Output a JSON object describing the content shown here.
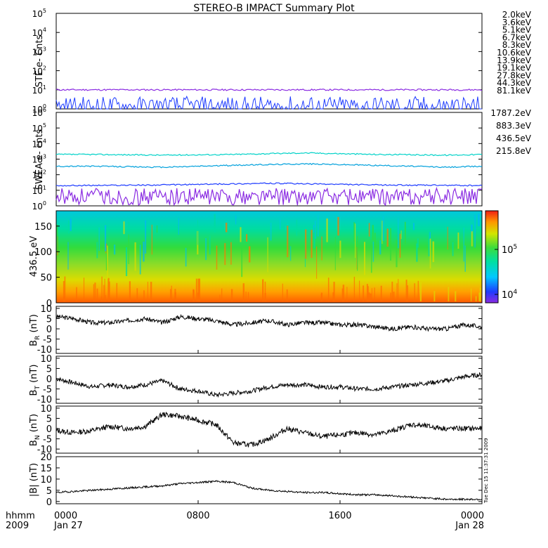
{
  "title": "STEREO-B IMPACT Summary Plot",
  "timestamp": "Tue Dec 15 11:37:31 2009",
  "time_axis": {
    "label_top": "hhmm",
    "label_bottom": "2009",
    "ticks": [
      {
        "hhmm": "0000",
        "date": "Jan 27",
        "hours": 0
      },
      {
        "hhmm": "0800",
        "date": "",
        "hours": 8
      },
      {
        "hhmm": "1600",
        "date": "",
        "hours": 16
      },
      {
        "hhmm": "0000",
        "date": "Jan 28",
        "hours": 24
      }
    ]
  },
  "ste_legend": [
    {
      "label": "2.0keV",
      "color": "#8a2be2"
    },
    {
      "label": "3.6keV",
      "color": "#3a3ad0"
    },
    {
      "label": "5.1keV",
      "color": "#1e64ff"
    },
    {
      "label": "6.7keV",
      "color": "#00a0dc"
    },
    {
      "label": "8.3keV",
      "color": "#00d2c8"
    },
    {
      "label": "10.6keV",
      "color": "#00d278"
    },
    {
      "label": "13.9keV",
      "color": "#3cc800"
    },
    {
      "label": "19.1keV",
      "color": "#a0d200"
    },
    {
      "label": "27.8keV",
      "color": "#ffc800"
    },
    {
      "label": "44.3keV",
      "color": "#ff8c00"
    },
    {
      "label": "81.1keV",
      "color": "#dc2814"
    }
  ],
  "swea_legend": [
    {
      "label": "1787.2eV",
      "color": "#8a2be2"
    },
    {
      "label": "883.3eV",
      "color": "#1e3cff"
    },
    {
      "label": "436.5eV",
      "color": "#00a0dc"
    },
    {
      "label": "215.8eV",
      "color": "#00d2c8"
    }
  ],
  "colorbar": {
    "tick_labels": [
      "10",
      "10"
    ],
    "tick_exps": [
      "5",
      "4"
    ]
  },
  "chart_data": [
    {
      "id": "ste",
      "type": "line",
      "ylabel": "STE e- Cnts",
      "yscale": "log",
      "ylim": [
        1,
        100000
      ],
      "ytick_exponents": [
        0,
        1,
        2,
        3,
        4,
        5
      ],
      "series": [
        {
          "name": "2.0keV",
          "level": 10,
          "color": "#8a2be2"
        },
        {
          "name": "3.6keV",
          "level": 1,
          "color": "#1e3cff"
        }
      ]
    },
    {
      "id": "swea",
      "type": "line",
      "ylabel": "SWEA e- cnts",
      "yscale": "log",
      "ylim": [
        1,
        1000000
      ],
      "ytick_exponents": [
        0,
        1,
        2,
        3,
        4,
        5,
        6
      ],
      "series": [
        {
          "name": "215.8eV",
          "color": "#00d2c8",
          "hours": [
            0,
            2,
            6,
            10,
            14,
            18,
            22,
            24
          ],
          "values": [
            2000,
            2000,
            1800,
            2000,
            2500,
            2000,
            1800,
            2000
          ]
        },
        {
          "name": "436.5eV",
          "color": "#00a0dc",
          "hours": [
            0,
            2,
            6,
            10,
            14,
            18,
            22,
            24
          ],
          "values": [
            350,
            350,
            300,
            400,
            500,
            400,
            300,
            350
          ]
        },
        {
          "name": "883.3eV",
          "color": "#1e3cff",
          "hours": [
            0,
            6,
            12,
            18,
            24
          ],
          "values": [
            20,
            22,
            28,
            22,
            20
          ]
        },
        {
          "name": "1787.2eV",
          "color": "#8a2be2",
          "hours": [
            0,
            24
          ],
          "values": [
            3,
            3
          ]
        }
      ]
    },
    {
      "id": "pad",
      "type": "heatmap",
      "ylabel": "436.5 eV",
      "ylim": [
        0,
        180
      ],
      "yticks": [
        0,
        50,
        100,
        150
      ],
      "colorscale": "log counts, 10^4 (violet) to 10^5.6 (red)"
    },
    {
      "id": "br",
      "type": "line",
      "ylabel": "B",
      "ylabel_sub": "R",
      "ylabel_unit": "(nT)",
      "ylim": [
        -12,
        11
      ],
      "yticks": [
        -10,
        -5,
        0,
        5,
        10
      ],
      "x": [
        0,
        1,
        2,
        3,
        4,
        5,
        6,
        7,
        8,
        9,
        10,
        11,
        12,
        13,
        14,
        15,
        16,
        17,
        18,
        19,
        20,
        21,
        22,
        23,
        24
      ],
      "values": [
        6,
        5,
        3,
        3,
        4,
        5,
        3,
        6,
        5,
        4,
        2,
        3,
        4,
        2,
        3,
        3,
        2,
        2,
        1,
        0,
        1,
        0,
        0,
        2,
        1
      ]
    },
    {
      "id": "bt",
      "type": "line",
      "ylabel": "B",
      "ylabel_sub": "T",
      "ylabel_unit": "(nT)",
      "ylim": [
        -12,
        11
      ],
      "yticks": [
        -10,
        -5,
        0,
        5,
        10
      ],
      "x": [
        0,
        1,
        2,
        3,
        4,
        5,
        6,
        7,
        8,
        9,
        10,
        11,
        12,
        13,
        14,
        15,
        16,
        17,
        18,
        19,
        20,
        21,
        22,
        23,
        24
      ],
      "values": [
        0,
        -2,
        -4,
        -3,
        -4,
        -3,
        -1,
        -5,
        -6,
        -8,
        -7,
        -6,
        -4,
        -3,
        -3,
        -4,
        -4,
        -5,
        -5,
        -4,
        -3,
        -2,
        -1,
        1,
        2
      ]
    },
    {
      "id": "bn",
      "type": "line",
      "ylabel": "B",
      "ylabel_sub": "N",
      "ylabel_unit": "(nT)",
      "ylim": [
        -12,
        11
      ],
      "yticks": [
        -10,
        -5,
        0,
        5,
        10
      ],
      "x": [
        0,
        1,
        2,
        3,
        4,
        5,
        6,
        7,
        8,
        9,
        10,
        11,
        12,
        13,
        14,
        15,
        16,
        17,
        18,
        19,
        20,
        21,
        22,
        23,
        24
      ],
      "values": [
        -1,
        -2,
        -1,
        1,
        0,
        1,
        7,
        6,
        4,
        2,
        -7,
        -8,
        -5,
        0,
        -2,
        -4,
        -3,
        -2,
        -3,
        -1,
        2,
        1,
        0,
        0,
        0
      ]
    },
    {
      "id": "bmag",
      "type": "line",
      "ylabel": "|B| (nT)",
      "ylim": [
        -1,
        20
      ],
      "yticks": [
        0,
        5,
        10,
        15,
        20
      ],
      "x": [
        0,
        1,
        2,
        3,
        4,
        5,
        6,
        7,
        8,
        9,
        10,
        11,
        12,
        13,
        14,
        15,
        16,
        17,
        18,
        19,
        20,
        21,
        22,
        23,
        24
      ],
      "values": [
        4,
        4.5,
        5,
        5.5,
        6,
        6.5,
        7,
        8,
        8.5,
        9,
        8.5,
        6,
        5,
        4.5,
        4,
        4,
        3.5,
        3,
        3,
        2.5,
        2,
        1.5,
        1,
        1,
        1
      ]
    }
  ]
}
